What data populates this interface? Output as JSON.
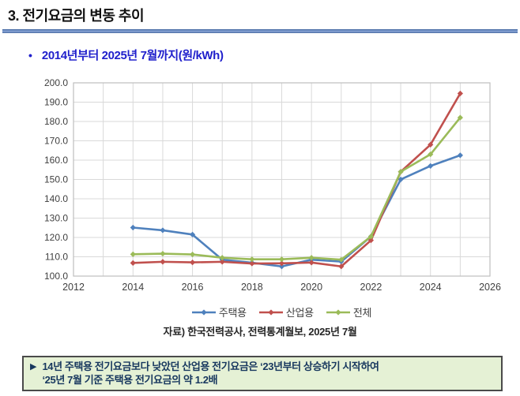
{
  "page": {
    "title": "3. 전기요금의 변동 추이",
    "bullet_glyph": "•",
    "subtitle": "2014년부터 2025년 7월까지(원/kWh)",
    "source": "자료) 한국전력공사, 전력통계월보, 2025년 7월",
    "callout": {
      "marker": "▶",
      "line1": "14년 주택용 전기요금보다 낮았던 산업용 전기요금은 ‘23년부터 상승하기 시작하여",
      "line2": "‘25년 7월 기준 주택용 전기요금의 약 1.2배"
    },
    "colors": {
      "accent_rule": "#5b7fbd",
      "subtitle_text": "#2020cc",
      "callout_bg": "#e5f1d5",
      "callout_border": "#4a4a4a",
      "callout_text": "#17375e",
      "axis_text": "#404040",
      "grid": "#d9d9d9",
      "plot_border": "#bfbfbf"
    }
  },
  "chart_data": {
    "type": "line",
    "title": "",
    "xlabel": "",
    "ylabel": "원/kWh",
    "x": [
      2014,
      2015,
      2016,
      2017,
      2018,
      2019,
      2020,
      2021,
      2022,
      2023,
      2024,
      2025
    ],
    "series": [
      {
        "name": "주택용",
        "color": "#4F81BD",
        "values": [
          125.1,
          123.7,
          121.5,
          108.5,
          106.9,
          105.0,
          108.5,
          107.5,
          120.5,
          150.0,
          157.0,
          162.5
        ]
      },
      {
        "name": "산업용",
        "color": "#C0504D",
        "values": [
          106.8,
          107.4,
          107.1,
          107.4,
          106.5,
          106.6,
          107.0,
          105.0,
          118.5,
          154.0,
          168.0,
          194.5
        ]
      },
      {
        "name": "전체",
        "color": "#9BBB59",
        "values": [
          111.3,
          111.6,
          111.2,
          109.5,
          108.7,
          108.7,
          109.5,
          108.5,
          120.5,
          154.0,
          163.0,
          182.0
        ]
      }
    ],
    "xlim": [
      2012,
      2026
    ],
    "ylim": [
      100,
      200
    ],
    "x_ticks": [
      2012,
      2014,
      2016,
      2018,
      2020,
      2022,
      2024,
      2026
    ],
    "x_tick_labels": [
      "2012",
      "2014",
      "2016",
      "2018",
      "2020",
      "2022",
      "2024",
      "2026"
    ],
    "x_minor_grid_step": 1,
    "y_ticks": [
      100,
      110,
      120,
      130,
      140,
      150,
      160,
      170,
      180,
      190,
      200
    ],
    "y_tick_labels": [
      "100.0",
      "110.0",
      "120.0",
      "130.0",
      "140.0",
      "150.0",
      "160.0",
      "170.0",
      "180.0",
      "190.0",
      "200.0"
    ],
    "grid": true,
    "marker": "diamond",
    "legend_position": "bottom"
  }
}
